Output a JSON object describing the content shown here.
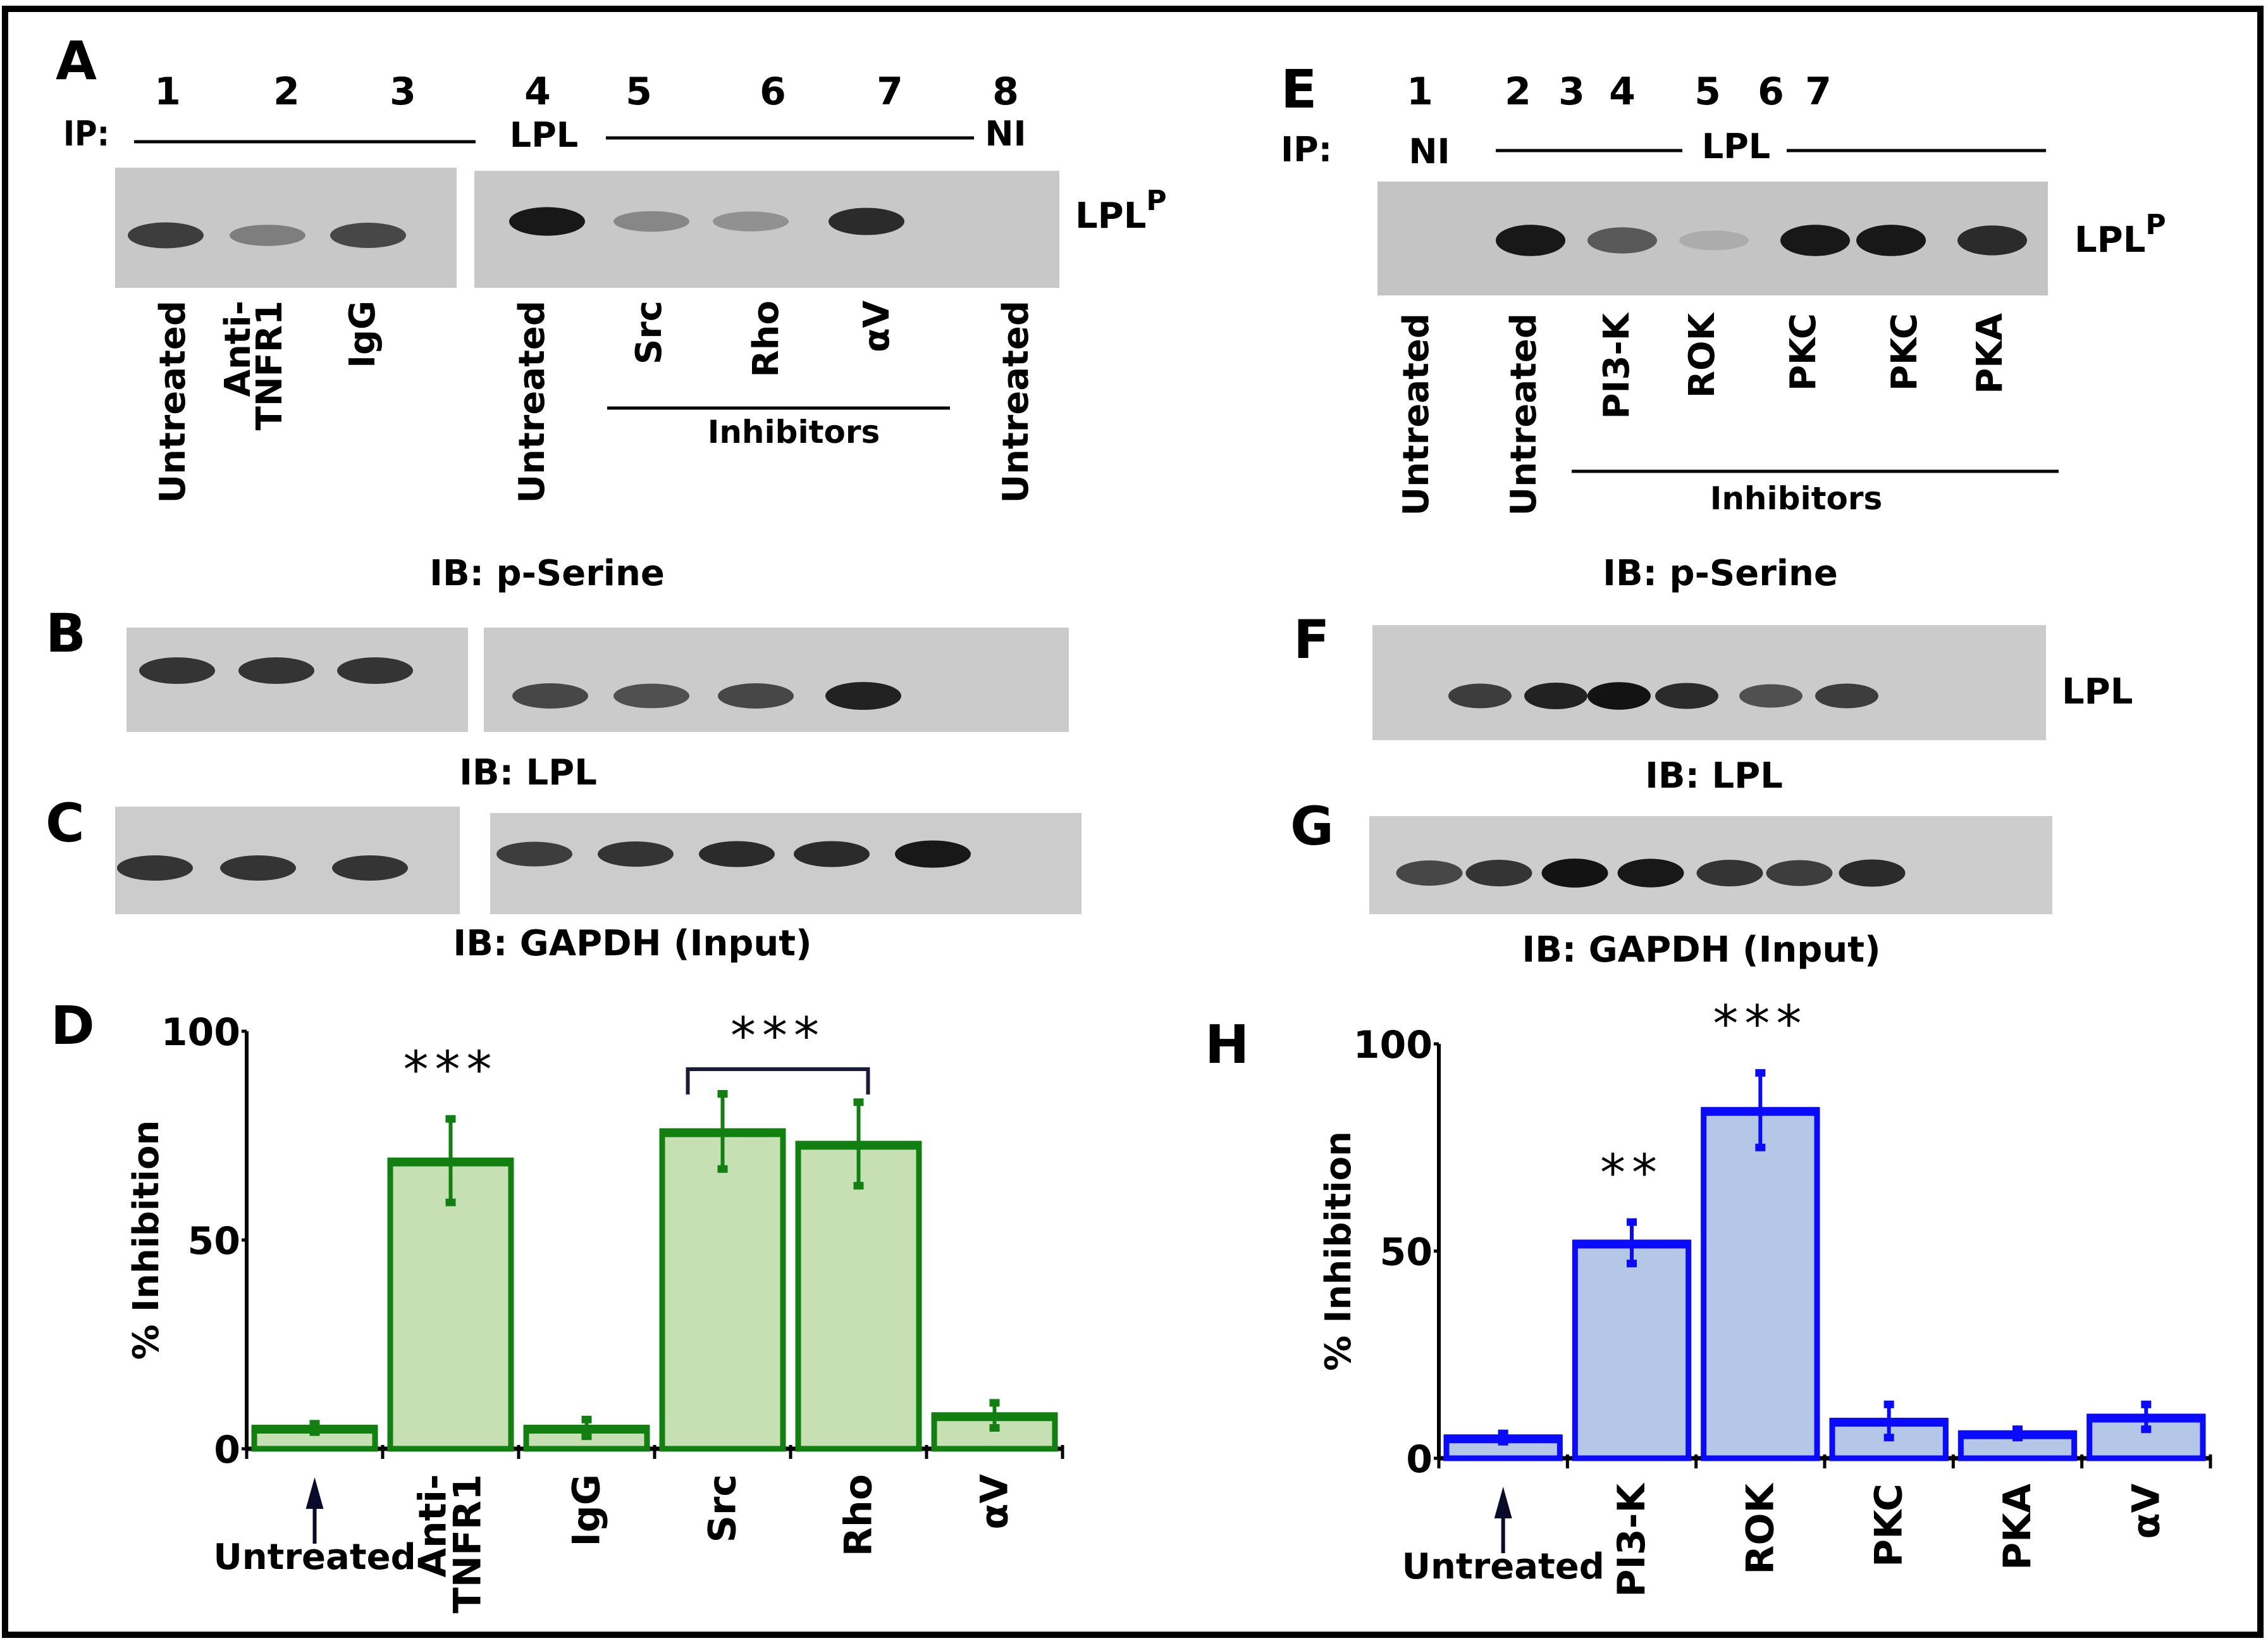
{
  "figure": {
    "frame_color": "#000000",
    "left_column": {
      "panel_A": {
        "letter": "A",
        "lane_numbers": [
          "1",
          "2",
          "3",
          "4",
          "5",
          "6",
          "7",
          "8"
        ],
        "ip_label": "IP:",
        "ip_antibody": "LPL",
        "ip_control": "NI",
        "band_label": "LPL",
        "band_superscript": "P",
        "lane_labels": [
          "Untreated",
          "Anti-TNFR1",
          "IgG",
          "Untreated",
          "Src",
          "Rho",
          "αV",
          "Untreated"
        ],
        "group_label": "Inhibitors",
        "ib_label": "IB: p-Serine",
        "band_intensity": [
          0.75,
          0.4,
          0.7,
          0.95,
          0.35,
          0.3,
          0.85,
          0
        ]
      },
      "panel_B": {
        "letter": "B",
        "ib_label": "IB: LPL",
        "band_intensity": [
          0.8,
          0.8,
          0.8,
          0.7,
          0.65,
          0.7,
          0.9,
          0
        ]
      },
      "panel_C": {
        "letter": "C",
        "ib_label": "IB: GAPDH (Input)",
        "band_intensity": [
          0.8,
          0.8,
          0.8,
          0.75,
          0.8,
          0.85,
          0.85,
          0.95
        ]
      },
      "panel_D": {
        "letter": "D"
      }
    },
    "right_column": {
      "panel_E": {
        "letter": "E",
        "lane_numbers": [
          "1",
          "2",
          "3",
          "4",
          "5",
          "6",
          "7"
        ],
        "ip_label": "IP:",
        "ip_control": "NI",
        "ip_antibody": "LPL",
        "band_label": "LPL",
        "band_superscript": "P",
        "lane_labels": [
          "Untreated",
          "Untreated",
          "PI3-K",
          "ROK",
          "PKC",
          "PKC",
          "PKA"
        ],
        "group_label": "Inhibitors",
        "ib_label": "IB: p-Serine",
        "band_intensity": [
          0,
          0.95,
          0.6,
          0.15,
          0.95,
          0.95,
          0.85
        ]
      },
      "panel_F": {
        "letter": "F",
        "band_label": "LPL",
        "ib_label": "IB: LPL",
        "band_intensity": [
          0,
          0.75,
          0.9,
          0.98,
          0.85,
          0.65,
          0.75
        ]
      },
      "panel_G": {
        "letter": "G",
        "ib_label": "IB: GAPDH (Input)",
        "band_intensity": [
          0.7,
          0.8,
          0.98,
          0.95,
          0.8,
          0.75,
          0.85
        ]
      },
      "panel_H": {
        "letter": "H"
      }
    }
  },
  "chart_data": [
    {
      "panel": "D",
      "type": "bar",
      "title": "",
      "xlabel": "",
      "ylabel": "% Inhibition",
      "ylim": [
        0,
        100
      ],
      "yticks": [
        "0",
        "50",
        "100"
      ],
      "categories": [
        "Untreated",
        "Anti-TNFR1",
        "IgG",
        "Src",
        "Rho",
        "αV"
      ],
      "values": [
        5,
        69,
        5,
        76,
        73,
        8
      ],
      "errors": [
        1,
        10,
        2,
        9,
        10,
        3
      ],
      "significance": [
        "",
        "***",
        "",
        "***",
        "***",
        ""
      ],
      "bracket": {
        "from": "Src",
        "to": "Rho",
        "label": "***"
      },
      "bar_fill": "#c6e0b4",
      "bar_edge": "#118011",
      "arrow_under": "Untreated",
      "grid": false
    },
    {
      "panel": "H",
      "type": "bar",
      "title": "",
      "xlabel": "",
      "ylabel": "% Inhibition",
      "ylim": [
        0,
        100
      ],
      "yticks": [
        "0",
        "50",
        "100"
      ],
      "categories": [
        "Untreated",
        "PI3-K",
        "ROK",
        "PKC",
        "PKA",
        "αV"
      ],
      "values": [
        5,
        52,
        84,
        9,
        6,
        10
      ],
      "errors": [
        1,
        5,
        9,
        4,
        1,
        3
      ],
      "significance": [
        "",
        "**",
        "***",
        "",
        "",
        ""
      ],
      "bar_fill": "#b4c7e7",
      "bar_edge": "#0a0aff",
      "arrow_under": "Untreated",
      "grid": false
    }
  ]
}
